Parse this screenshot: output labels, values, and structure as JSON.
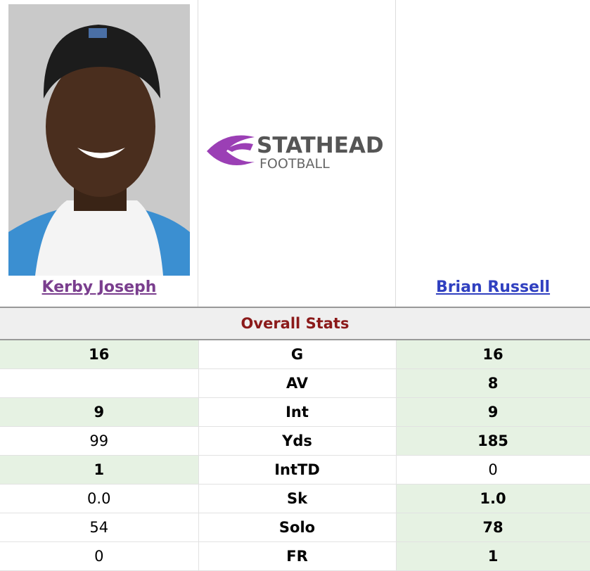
{
  "players": [
    {
      "name": "Kerby Joseph"
    },
    {
      "name": "Brian Russell"
    }
  ],
  "logo": {
    "line1": "STATHEAD",
    "line2": "FOOTBALL"
  },
  "section_title": "Overall Stats",
  "rows": [
    {
      "label": "G",
      "left": "16",
      "right": "16"
    },
    {
      "label": "AV",
      "left": null,
      "right": "8"
    },
    {
      "label": "Int",
      "left": "9",
      "right": "9"
    },
    {
      "label": "Yds",
      "left": "99",
      "right": "185"
    },
    {
      "label": "IntTD",
      "left": "1",
      "right": "0"
    },
    {
      "label": "Sk",
      "left": "0.0",
      "right": "1.0"
    },
    {
      "label": "Solo",
      "left": "54",
      "right": "78"
    },
    {
      "label": "FR",
      "left": "0",
      "right": "1"
    }
  ]
}
